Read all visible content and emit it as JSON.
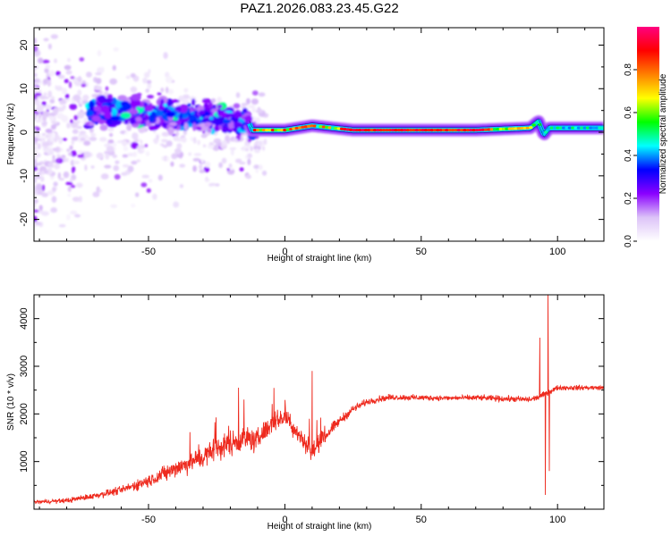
{
  "title": "PAZ1.2026.083.23.45.G22",
  "colors": {
    "snr_line": "#ee2a1e",
    "axis": "#000000",
    "background": "#ffffff"
  },
  "chart_data": [
    {
      "type": "heatmap",
      "name": "spectrogram",
      "xlabel": "Height of straight line (km)",
      "ylabel": "Frequency (Hz)",
      "xlim": [
        -92,
        117
      ],
      "ylim": [
        -25,
        24
      ],
      "x_ticks": [
        -50,
        0,
        50,
        100
      ],
      "y_ticks": [
        -20,
        -10,
        0,
        10,
        20
      ],
      "x_tick_labels": [
        "-50",
        "0",
        "50",
        "100"
      ],
      "y_tick_labels": [
        "-20",
        "-10",
        "0",
        "10",
        "20"
      ],
      "ridge": {
        "description": "dominant frequency ridge",
        "x": [
          -65,
          -50,
          -35,
          -20,
          -13,
          -12,
          0,
          10,
          25,
          50,
          70,
          90,
          93,
          95,
          97,
          117
        ],
        "freq": [
          4.5,
          4.5,
          3.5,
          3.0,
          2.0,
          0.5,
          0.5,
          1.5,
          0.5,
          0.5,
          0.5,
          1.0,
          2.5,
          -0.5,
          1.0,
          1.0
        ]
      },
      "colorbar": {
        "label": "Normalized spectral amplitude",
        "range": [
          0,
          1
        ],
        "ticks": [
          0.0,
          0.2,
          0.4,
          0.6,
          0.8
        ],
        "tick_labels": [
          "0.0",
          "0.2",
          "0.4",
          "0.6",
          "0.8"
        ],
        "stops": [
          "#ffffff",
          "#dcc3f8",
          "#8a00ff",
          "#0000ff",
          "#00ffff",
          "#00ff00",
          "#ffff00",
          "#ff8000",
          "#ff0000",
          "#ff0080"
        ]
      }
    },
    {
      "type": "line",
      "name": "snr",
      "xlabel": "Height of straight line (km)",
      "ylabel": "SNR (10 * v/v)",
      "xlim": [
        -92,
        117
      ],
      "ylim": [
        0,
        4500
      ],
      "x_ticks": [
        -50,
        0,
        50,
        100
      ],
      "y_ticks": [
        1000,
        2000,
        3000,
        4000
      ],
      "x_tick_labels": [
        "-50",
        "0",
        "50",
        "100"
      ],
      "y_tick_labels": [
        "1000",
        "2000",
        "3000",
        "4000"
      ],
      "trend": {
        "x": [
          -92,
          -80,
          -70,
          -60,
          -50,
          -40,
          -30,
          -20,
          -13,
          -11,
          -5,
          0,
          10,
          15,
          20,
          25,
          30,
          35,
          40,
          50,
          60,
          70,
          80,
          90,
          93,
          100,
          117
        ],
        "y": [
          150,
          180,
          280,
          400,
          600,
          850,
          1100,
          1400,
          1500,
          1400,
          1800,
          1950,
          1200,
          1550,
          1850,
          2100,
          2250,
          2320,
          2350,
          2340,
          2330,
          2340,
          2320,
          2300,
          2350,
          2550,
          2550
        ]
      },
      "noise": {
        "x": [
          -92,
          -60,
          -40,
          -20,
          -13,
          0,
          10,
          20,
          30,
          60,
          90,
          100,
          117
        ],
        "amplitude": [
          50,
          120,
          280,
          400,
          350,
          300,
          280,
          150,
          100,
          80,
          100,
          80,
          70
        ]
      },
      "spikes": [
        {
          "x": -17,
          "y": 2550
        },
        {
          "x": -15,
          "y": 2300
        },
        {
          "x": 10,
          "y": 2900
        },
        {
          "x": 9,
          "y": 1900
        },
        {
          "x": 93.5,
          "y": 3600
        },
        {
          "x": 95.5,
          "y": 300
        },
        {
          "x": 96.5,
          "y": 4500
        },
        {
          "x": 97,
          "y": 800
        }
      ]
    }
  ]
}
